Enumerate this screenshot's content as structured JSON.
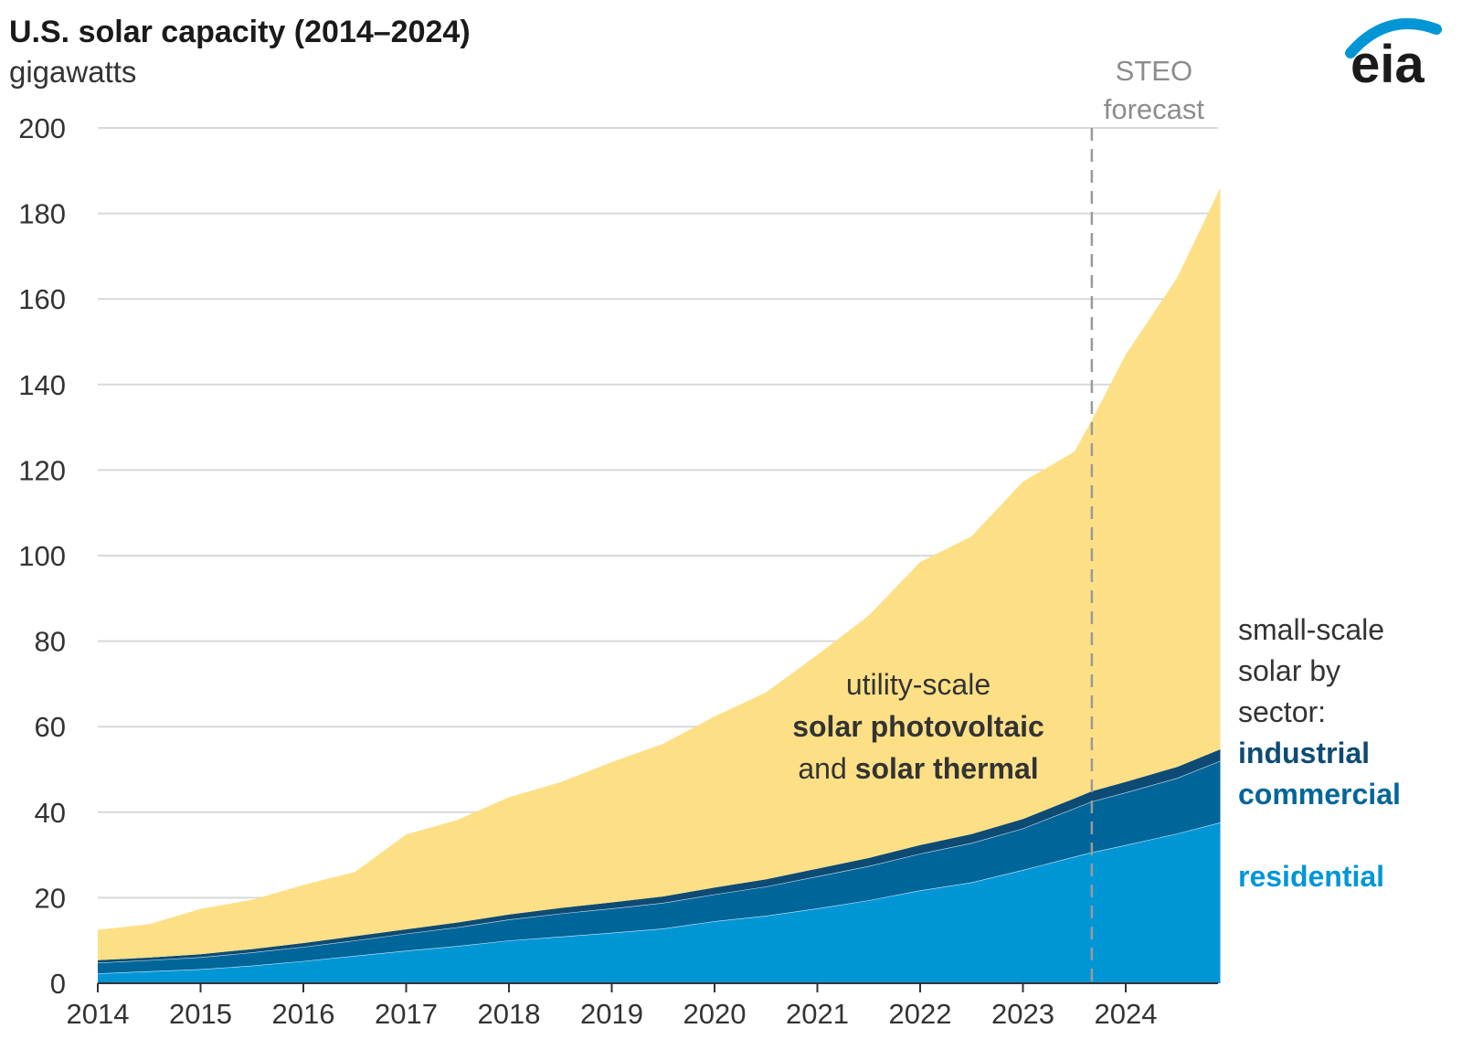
{
  "chart_data": {
    "type": "area",
    "title": "U.S. solar capacity (2014–2024)",
    "ylabel": "gigawatts",
    "xlabel": "",
    "xlim": [
      2014.0,
      2024.92
    ],
    "ylim": [
      0,
      200
    ],
    "x_ticks": [
      "2014",
      "2015",
      "2016",
      "2017",
      "2018",
      "2019",
      "2020",
      "2021",
      "2022",
      "2023",
      "2024"
    ],
    "y_ticks": [
      0,
      20,
      40,
      60,
      80,
      100,
      120,
      140,
      160,
      180,
      200
    ],
    "grid": true,
    "stacked": true,
    "x": [
      2014.0,
      2014.5,
      2015.0,
      2015.5,
      2016.0,
      2016.5,
      2017.0,
      2017.5,
      2018.0,
      2018.5,
      2019.0,
      2019.5,
      2020.0,
      2020.5,
      2021.0,
      2021.5,
      2022.0,
      2022.5,
      2023.0,
      2023.5,
      2023.67,
      2024.0,
      2024.5,
      2024.92
    ],
    "series": [
      {
        "name": "residential",
        "color": "#0096d6",
        "values": [
          2.3,
          2.8,
          3.3,
          4.1,
          5.2,
          6.4,
          7.6,
          8.7,
          10.0,
          10.9,
          11.8,
          12.8,
          14.5,
          15.8,
          17.5,
          19.4,
          21.7,
          23.6,
          26.5,
          29.6,
          30.6,
          32.3,
          35.0,
          37.6
        ]
      },
      {
        "name": "commercial",
        "color": "#006699",
        "values": [
          2.5,
          2.6,
          2.8,
          3.1,
          3.3,
          3.6,
          4.0,
          4.4,
          4.9,
          5.4,
          5.7,
          6.0,
          6.3,
          6.8,
          7.5,
          8.0,
          8.6,
          9.2,
          9.7,
          11.3,
          11.9,
          12.3,
          13.0,
          14.4
        ]
      },
      {
        "name": "industrial",
        "color": "#0d4b74",
        "values": [
          0.6,
          0.6,
          0.7,
          0.8,
          0.9,
          1.0,
          1.0,
          1.1,
          1.2,
          1.3,
          1.4,
          1.5,
          1.6,
          1.7,
          1.8,
          1.9,
          2.0,
          2.1,
          2.2,
          2.3,
          2.4,
          2.5,
          2.6,
          2.7
        ]
      },
      {
        "name": "utility-scale solar photovoltaic and solar thermal",
        "color": "#fde086",
        "values": [
          7.1,
          7.8,
          10.6,
          11.5,
          13.6,
          15.0,
          22.2,
          24.0,
          27.4,
          29.4,
          32.8,
          35.7,
          40.0,
          43.7,
          50.0,
          56.7,
          66.2,
          69.6,
          78.9,
          81.1,
          86.8,
          99.9,
          114.4,
          131.3
        ]
      }
    ],
    "forecast_start": 2023.67,
    "forecast_label": [
      "STEO",
      "forecast"
    ],
    "annotations": {
      "utility": {
        "line1": "utility-scale",
        "line2": "solar photovoltaic",
        "line3_and": "and",
        "line3_bold": "solar thermal"
      },
      "small_scale": {
        "line1": "small-scale",
        "line2": "solar by",
        "line3": "sector:",
        "industrial": "industrial",
        "commercial": "commercial",
        "residential": "residential"
      }
    }
  },
  "logo": {
    "text": "eia",
    "arc_color": "#0096d6",
    "text_color": "#1a1a1a"
  }
}
